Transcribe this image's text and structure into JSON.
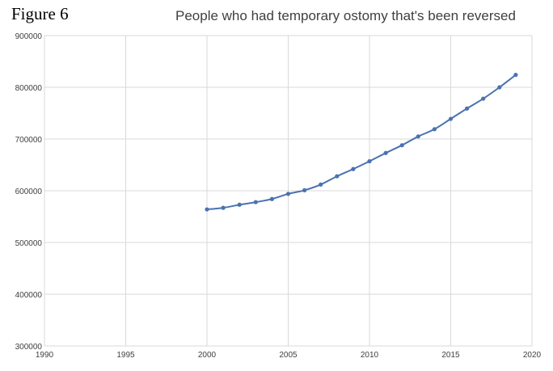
{
  "figure_label": "Figure 6",
  "chart_data": {
    "type": "scatter",
    "title": "People who had temporary ostomy that's been reversed",
    "xlabel": "",
    "ylabel": "",
    "xlim": [
      1990,
      2020
    ],
    "ylim": [
      300000,
      900000
    ],
    "x_ticks": [
      "1990",
      "1995",
      "2000",
      "2005",
      "2010",
      "2015",
      "2020"
    ],
    "y_ticks": [
      "300000",
      "400000",
      "500000",
      "600000",
      "700000",
      "800000",
      "900000"
    ],
    "grid": true,
    "legend": "none",
    "trendline": "smooth",
    "series": [
      {
        "color": "#4a72b0",
        "x": [
          2000,
          2001,
          2002,
          2003,
          2004,
          2005,
          2006,
          2007,
          2008,
          2009,
          2010,
          2011,
          2012,
          2013,
          2014,
          2015,
          2016,
          2017,
          2018,
          2019
        ],
        "y": [
          564000,
          567000,
          573000,
          578000,
          584000,
          594000,
          601000,
          612000,
          628000,
          642000,
          657000,
          673000,
          688000,
          705000,
          719000,
          739000,
          759000,
          778000,
          800000,
          824000
        ]
      }
    ]
  }
}
